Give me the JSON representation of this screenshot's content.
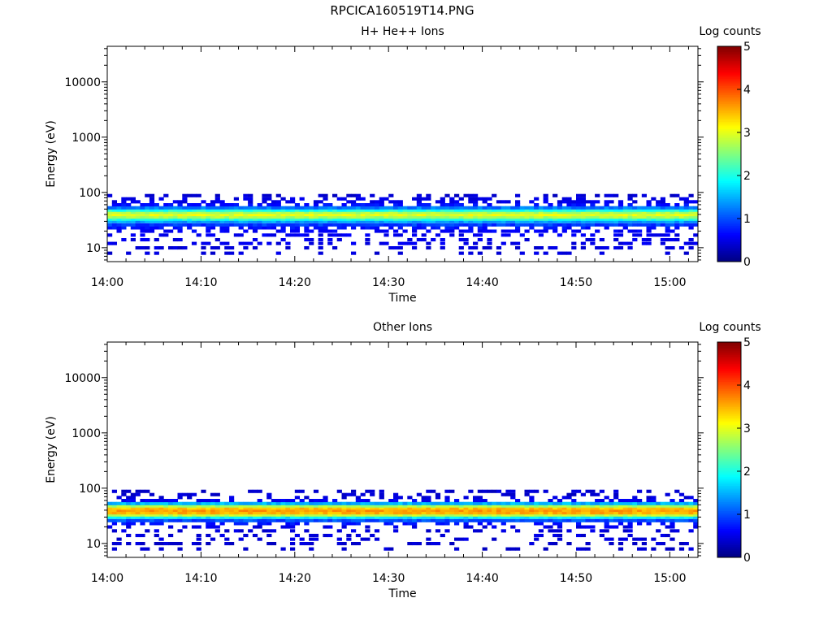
{
  "figure": {
    "title": "RPCICA160519T14.PNG"
  },
  "chart_data": [
    {
      "type": "heatmap",
      "title": "H+ He++ Ions",
      "xlabel": "Time",
      "ylabel": "Energy (eV)",
      "x_range": [
        "14:00",
        "15:03"
      ],
      "x_ticks": [
        "14:00",
        "14:10",
        "14:20",
        "14:30",
        "14:40",
        "14:50",
        "15:00"
      ],
      "y_scale": "log",
      "y_range": [
        5.6,
        44000
      ],
      "y_ticks": [
        "10",
        "100",
        "1000",
        "10000"
      ],
      "colorbar": {
        "label": "Log counts",
        "range": [
          0,
          5
        ],
        "ticks": [
          "0",
          "1",
          "2",
          "3",
          "4",
          "5"
        ],
        "colormap": "jet"
      },
      "energy_profile": {
        "energy_ev": [
          8,
          10,
          12,
          14,
          17,
          20,
          23,
          26,
          30,
          33,
          36,
          40,
          44,
          48,
          53,
          60,
          68,
          77,
          88
        ],
        "log_counts": [
          0.35,
          0.35,
          0.4,
          0.4,
          0.45,
          0.5,
          0.6,
          0.9,
          1.4,
          2.0,
          2.7,
          3.0,
          2.7,
          2.0,
          1.2,
          0.6,
          0.4,
          0.4,
          0.3
        ],
        "occupancy": [
          0.3,
          0.35,
          0.35,
          0.4,
          0.45,
          0.45,
          0.5,
          1,
          1,
          1,
          1,
          1,
          1,
          1,
          1,
          0.55,
          0.45,
          0.4,
          0.35
        ]
      }
    },
    {
      "type": "heatmap",
      "title": "Other Ions",
      "xlabel": "Time",
      "ylabel": "Energy (eV)",
      "x_range": [
        "14:00",
        "15:03"
      ],
      "x_ticks": [
        "14:00",
        "14:10",
        "14:20",
        "14:30",
        "14:40",
        "14:50",
        "15:00"
      ],
      "y_scale": "log",
      "y_range": [
        5.6,
        44000
      ],
      "y_ticks": [
        "10",
        "100",
        "1000",
        "10000"
      ],
      "colorbar": {
        "label": "Log counts",
        "range": [
          0,
          5
        ],
        "ticks": [
          "0",
          "1",
          "2",
          "3",
          "4",
          "5"
        ],
        "colormap": "jet"
      },
      "energy_profile": {
        "energy_ev": [
          8,
          10,
          12,
          14,
          17,
          20,
          23,
          26,
          30,
          33,
          36,
          40,
          44,
          48,
          53,
          60,
          68,
          77,
          88
        ],
        "log_counts": [
          0.3,
          0.3,
          0.35,
          0.35,
          0.35,
          0.4,
          0.6,
          1.0,
          1.8,
          2.8,
          3.5,
          3.6,
          3.4,
          2.7,
          1.5,
          0.5,
          0.35,
          0.3,
          0.3
        ],
        "occupancy": [
          0.25,
          0.3,
          0.3,
          0.3,
          0.35,
          0.35,
          0.45,
          1,
          1,
          1,
          1,
          1,
          1,
          1,
          1,
          0.4,
          0.35,
          0.3,
          0.3
        ]
      }
    }
  ]
}
